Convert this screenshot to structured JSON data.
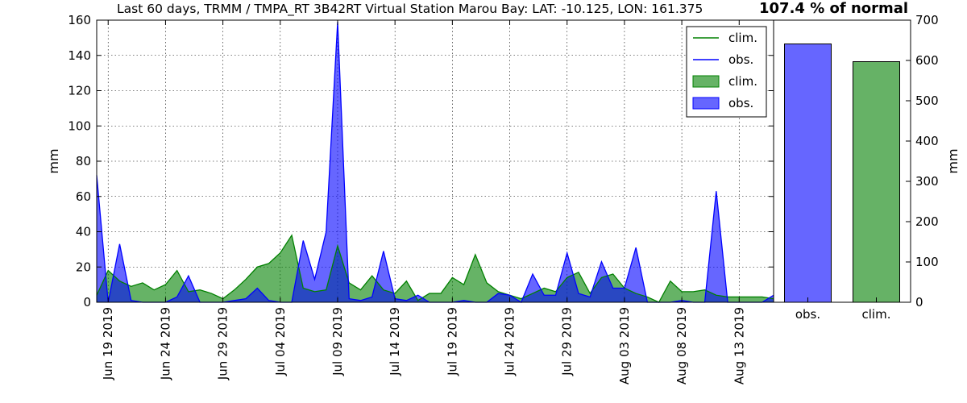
{
  "title": "Last 60 days, TRMM / TMPA_RT 3B42RT Virtual Station Marou Bay: LAT: -10.125, LON: 161.375",
  "percent_of_normal": "107.4 % of normal",
  "colors": {
    "obs": "#0000ff",
    "clim": "#008000",
    "obs_fill": "#6666ff",
    "clim_fill": "#66b266"
  },
  "chart_data": [
    {
      "type": "area",
      "ylabel": "mm",
      "ylim": [
        0,
        160
      ],
      "yticks": [
        0,
        20,
        40,
        60,
        80,
        100,
        120,
        140,
        160
      ],
      "grid": true,
      "legend_position": "top-right",
      "legend": [
        {
          "label": "clim.",
          "kind": "line",
          "series": "clim"
        },
        {
          "label": "obs.",
          "kind": "line",
          "series": "obs"
        },
        {
          "label": "clim.",
          "kind": "patch",
          "series": "clim"
        },
        {
          "label": "obs.",
          "kind": "patch",
          "series": "obs"
        }
      ],
      "x": [
        "2019-06-18",
        "2019-06-19",
        "2019-06-20",
        "2019-06-21",
        "2019-06-22",
        "2019-06-23",
        "2019-06-24",
        "2019-06-25",
        "2019-06-26",
        "2019-06-27",
        "2019-06-28",
        "2019-06-29",
        "2019-06-30",
        "2019-07-01",
        "2019-07-02",
        "2019-07-03",
        "2019-07-04",
        "2019-07-05",
        "2019-07-06",
        "2019-07-07",
        "2019-07-08",
        "2019-07-09",
        "2019-07-10",
        "2019-07-11",
        "2019-07-12",
        "2019-07-13",
        "2019-07-14",
        "2019-07-15",
        "2019-07-16",
        "2019-07-17",
        "2019-07-18",
        "2019-07-19",
        "2019-07-20",
        "2019-07-21",
        "2019-07-22",
        "2019-07-23",
        "2019-07-24",
        "2019-07-25",
        "2019-07-26",
        "2019-07-27",
        "2019-07-28",
        "2019-07-29",
        "2019-07-30",
        "2019-07-31",
        "2019-08-01",
        "2019-08-02",
        "2019-08-03",
        "2019-08-04",
        "2019-08-05",
        "2019-08-06",
        "2019-08-07",
        "2019-08-08",
        "2019-08-09",
        "2019-08-10",
        "2019-08-11",
        "2019-08-12",
        "2019-08-13",
        "2019-08-14",
        "2019-08-15",
        "2019-08-16"
      ],
      "xticks": [
        {
          "date": "2019-06-19",
          "label": "Jun 19 2019"
        },
        {
          "date": "2019-06-24",
          "label": "Jun 24 2019"
        },
        {
          "date": "2019-06-29",
          "label": "Jun 29 2019"
        },
        {
          "date": "2019-07-04",
          "label": "Jul 04 2019"
        },
        {
          "date": "2019-07-09",
          "label": "Jul 09 2019"
        },
        {
          "date": "2019-07-14",
          "label": "Jul 14 2019"
        },
        {
          "date": "2019-07-19",
          "label": "Jul 19 2019"
        },
        {
          "date": "2019-07-24",
          "label": "Jul 24 2019"
        },
        {
          "date": "2019-07-29",
          "label": "Jul 29 2019"
        },
        {
          "date": "2019-08-03",
          "label": "Aug 03 2019"
        },
        {
          "date": "2019-08-08",
          "label": "Aug 08 2019"
        },
        {
          "date": "2019-08-13",
          "label": "Aug 13 2019"
        }
      ],
      "series": [
        {
          "name": "obs.",
          "key": "obs",
          "values": [
            72,
            0,
            33,
            1,
            0,
            0,
            0,
            3,
            15,
            0,
            0,
            0,
            1,
            2,
            8,
            1,
            0,
            0,
            35,
            13,
            40,
            159,
            2,
            1,
            3,
            29,
            2,
            1,
            4,
            0,
            0,
            0,
            1,
            0,
            0,
            5,
            4,
            0,
            16,
            4,
            4,
            28,
            5,
            3,
            23,
            8,
            8,
            31,
            0,
            0,
            0,
            1,
            0,
            0,
            63,
            0,
            0,
            0,
            0,
            4
          ]
        },
        {
          "name": "clim.",
          "key": "clim",
          "values": [
            4,
            18,
            12,
            9,
            11,
            7,
            10,
            18,
            6,
            7,
            5,
            2,
            7,
            13,
            20,
            22,
            28,
            38,
            8,
            6,
            7,
            32,
            11,
            7,
            15,
            7,
            5,
            12,
            1,
            5,
            5,
            14,
            10,
            27,
            11,
            6,
            4,
            2,
            5,
            8,
            6,
            14,
            17,
            5,
            14,
            16,
            8,
            5,
            3,
            0,
            12,
            6,
            6,
            7,
            4,
            3,
            3,
            3,
            3,
            2
          ]
        }
      ]
    },
    {
      "type": "bar",
      "ylabel": "mm",
      "ylim": [
        0,
        700
      ],
      "yticks": [
        0,
        100,
        200,
        300,
        400,
        500,
        600,
        700
      ],
      "categories": [
        "obs.",
        "clim."
      ],
      "values": [
        641,
        597
      ]
    }
  ]
}
